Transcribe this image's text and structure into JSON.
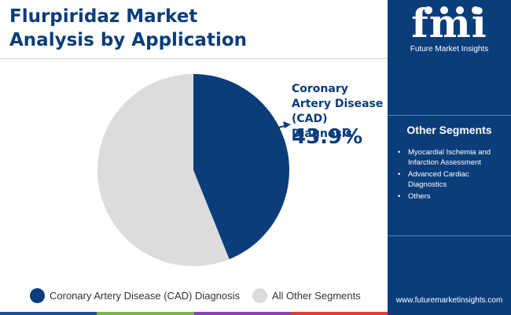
{
  "header": {
    "title": "Flurpiridaz Market\nAnalysis by Application"
  },
  "brand": {
    "logo_text": "fmi",
    "logo_subtitle": "Future Market Insights",
    "website": "www.futuremarketinsights.com",
    "colors": {
      "primary": "#0b3d7a",
      "light_segment": "#dcdcdc",
      "bottom_bar": [
        "#1f4e9c",
        "#7cb342",
        "#8e3fb5",
        "#e53935"
      ]
    }
  },
  "callout": {
    "label": "Coronary Artery Disease (CAD) Diagnosis",
    "value": "43.9%"
  },
  "other_segments": {
    "title": "Other Segments",
    "bullet": "•",
    "items": [
      "Myocardial Ischemia and Infarction Assessment",
      "Advanced Cardiac Diagnostics",
      "Others"
    ]
  },
  "chart_data": {
    "type": "pie",
    "title": "",
    "slices": [
      {
        "name": "Coronary Artery Disease (CAD) Diagnosis",
        "value": 43.9,
        "color": "#0b3d7a"
      },
      {
        "name": "All Other Segments",
        "value": 56.1,
        "color": "#dcdcdc"
      }
    ],
    "legend": [
      {
        "label": "Coronary Artery Disease (CAD) Diagnosis",
        "color": "#0b3d7a"
      },
      {
        "label": "All Other Segments",
        "color": "#dcdcdc"
      }
    ],
    "legend_position": "bottom"
  }
}
